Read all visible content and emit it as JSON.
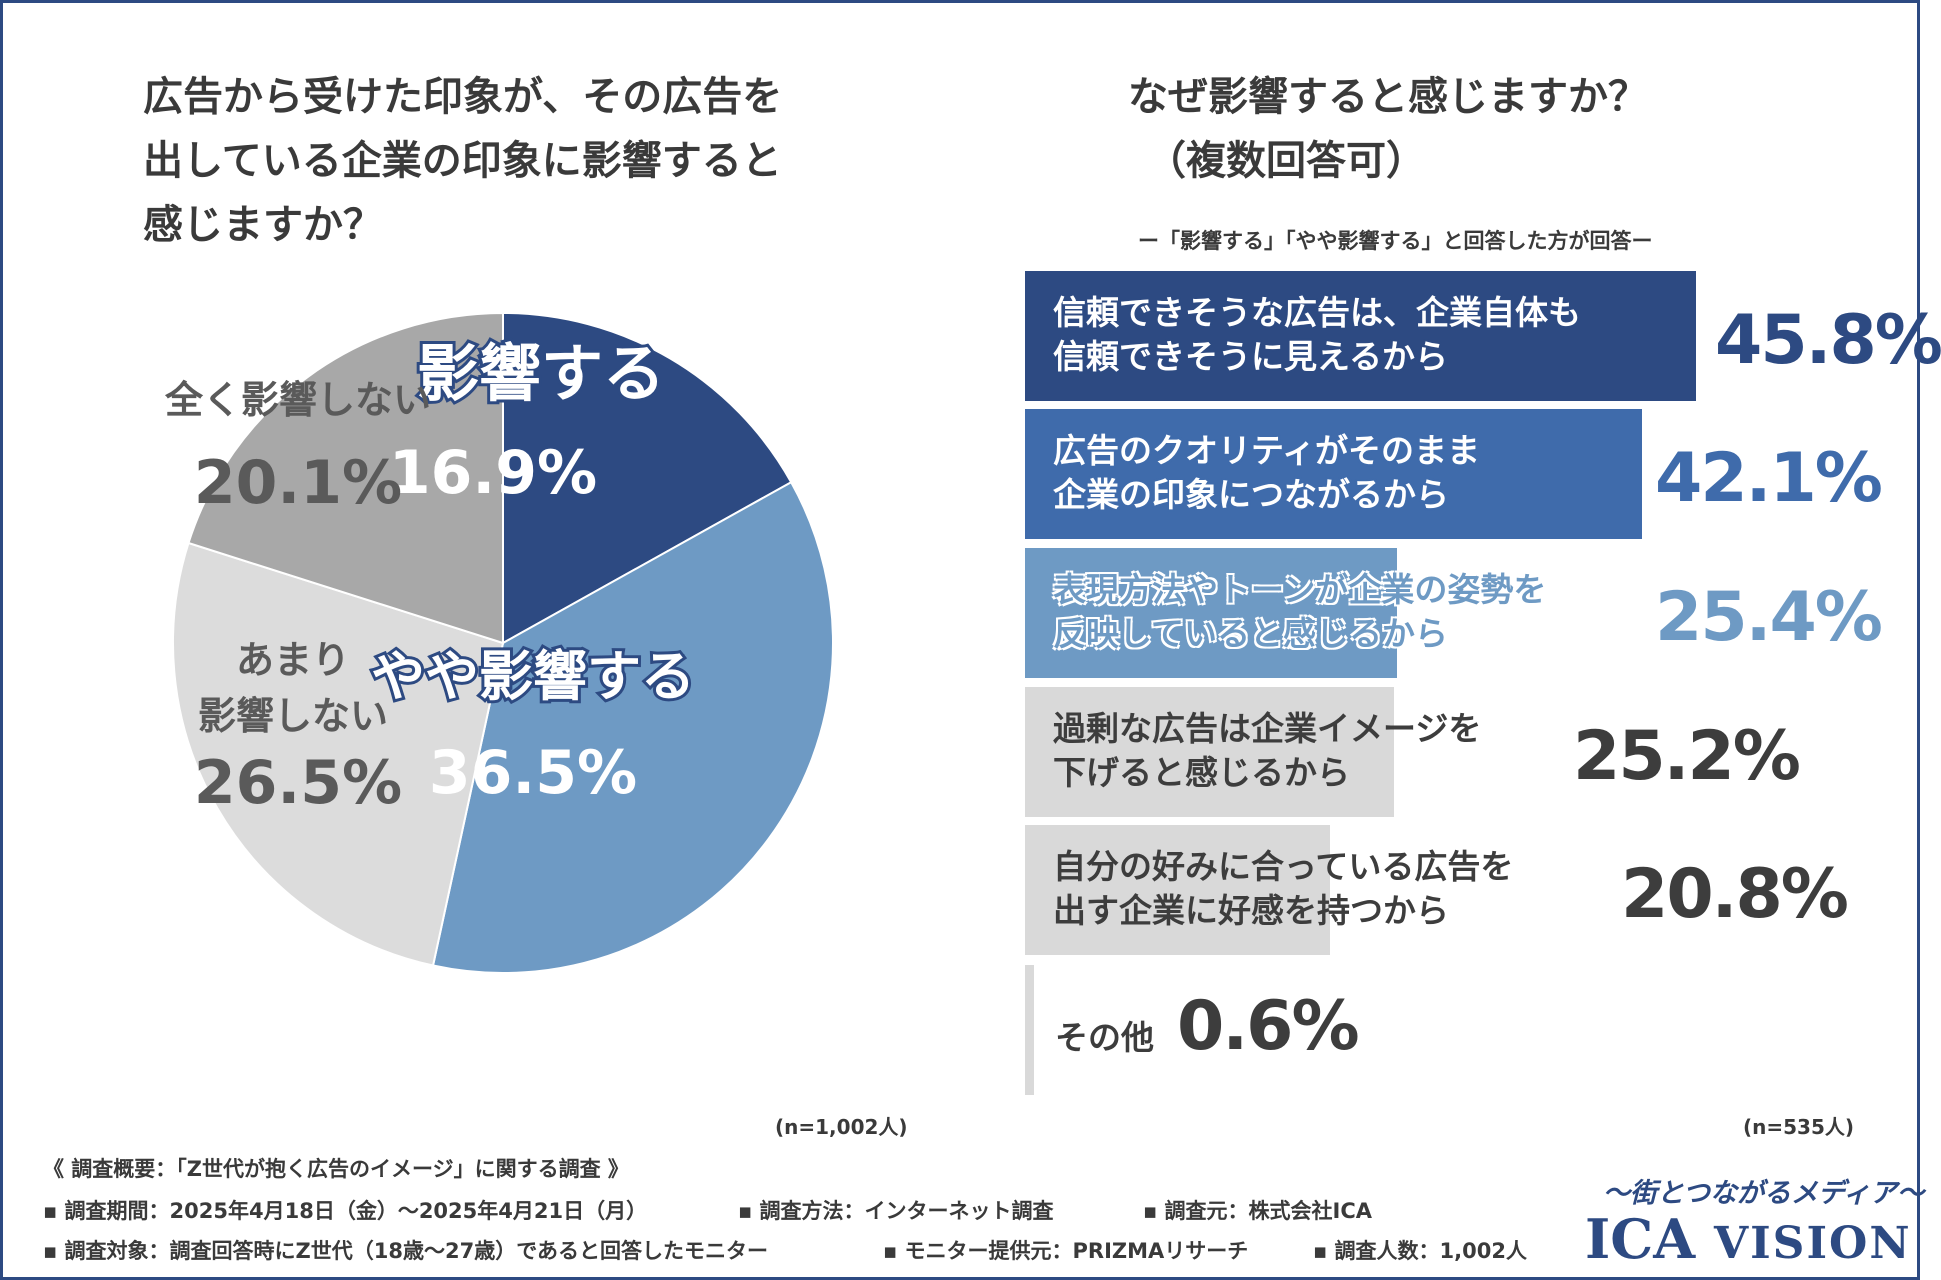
{
  "colors": {
    "border": "#2d4a82",
    "affects": "#2d4a82",
    "somewhat": "#6e9ac4",
    "not_much": "#dcdcdc",
    "not_at_all": "#a8a8a8",
    "bar1": "#2d4a82",
    "bar2": "#3f6bab",
    "bar3": "#6e9ac4",
    "bar_gray": "#d9d9d9"
  },
  "left": {
    "title_lines": [
      "広告から受けた印象が、その広告を",
      "出している企業の印象に影響すると",
      "感じますか？"
    ],
    "n": "(n=1,002人)"
  },
  "right": {
    "title_lines": [
      "なぜ影響すると感じますか？",
      "（複数回答可）"
    ],
    "note": "ー「影響する」「やや影響する」と回答した方が回答ー",
    "n": "(n=535人)"
  },
  "chart_data": [
    {
      "type": "pie",
      "title": "広告から受けた印象が、その広告を出している企業の印象に影響すると感じますか？",
      "slices": [
        {
          "label": "影響する",
          "value": 16.9,
          "value_label": "16.9%",
          "color": "#2d4a82"
        },
        {
          "label": "やや影響する",
          "value": 36.5,
          "value_label": "36.5%",
          "color": "#6e9ac4"
        },
        {
          "label": "あまり影響しない",
          "label_lines": [
            "あまり",
            "影響しない"
          ],
          "value": 26.5,
          "value_label": "26.5%",
          "color": "#dcdcdc"
        },
        {
          "label": "全く影響しない",
          "value": 20.1,
          "value_label": "20.1%",
          "color": "#a8a8a8"
        }
      ]
    },
    {
      "type": "bar",
      "orientation": "horizontal",
      "title": "なぜ影響すると感じますか？（複数回答可）",
      "xlim": [
        0,
        100
      ],
      "bars": [
        {
          "lines": [
            "信頼できそうな広告は、企業自体も",
            "信頼できそうに見えるから"
          ],
          "value": 45.8,
          "value_label": "45.8%"
        },
        {
          "lines": [
            "広告のクオリティがそのまま",
            "企業の印象につながるから"
          ],
          "value": 42.1,
          "value_label": "42.1%"
        },
        {
          "lines": [
            "表現方法やトーンが企業の姿勢を",
            "反映していると感じるから"
          ],
          "value": 25.4,
          "value_label": "25.4%"
        },
        {
          "lines": [
            "過剰な広告は企業イメージを",
            "下げると感じるから"
          ],
          "value": 25.2,
          "value_label": "25.2%"
        },
        {
          "lines": [
            "自分の好みに合っている広告を",
            "出す企業に好感を持つから"
          ],
          "value": 20.8,
          "value_label": "20.8%"
        },
        {
          "lines": [
            "その他"
          ],
          "value": 0.6,
          "value_label": "0.6%"
        }
      ]
    }
  ],
  "footer": {
    "summary": "《 調査概要：「Z世代が抱く広告のイメージ」に関する調査 》",
    "period": "▪ 調査期間：2025年4月18日（金）〜2025年4月21日（月）",
    "method": "▪ 調査方法：インターネット調査",
    "source": "▪ 調査元：株式会社ICA",
    "target": "▪ 調査対象：調査回答時にZ世代（18歳〜27歳）であると回答したモニター",
    "provider": "▪ モニター提供元：PRIZMAリサーチ",
    "count": "▪ 調査人数：1,002人"
  },
  "brand": {
    "tagline": "〜街とつながるメディア〜",
    "name_ica": "ICA",
    "name_vision": "VISION"
  }
}
